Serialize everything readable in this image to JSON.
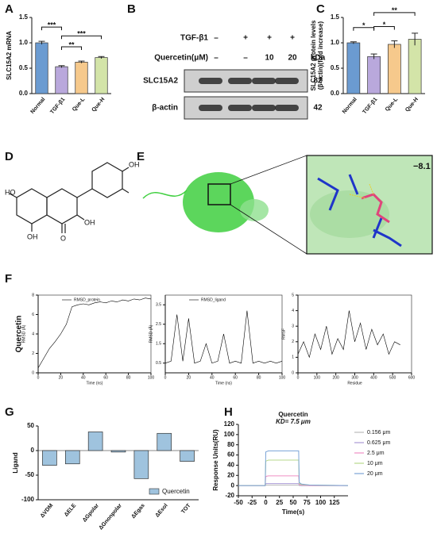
{
  "chart_data": [
    {
      "type": "bar",
      "panel": "A",
      "ylabel": [
        "SLC15A2 mRNA"
      ],
      "categories": [
        "Normal",
        "TGF-β1",
        "Que-L",
        "Que-H"
      ],
      "values": [
        1.0,
        0.53,
        0.62,
        0.71
      ],
      "errors": [
        0.03,
        0.02,
        0.02,
        0.02
      ],
      "colors": [
        "#6b9bd1",
        "#b9a8dc",
        "#f6c98c",
        "#d3e4a8"
      ],
      "ylim": [
        0,
        1.5
      ],
      "yticks": [
        {
          "value": 0,
          "label": "0.0"
        },
        0.5,
        {
          "value": 1,
          "label": "1.0"
        },
        1.5
      ],
      "annotations": [
        {
          "text": "***",
          "from": 0,
          "to": 1
        },
        {
          "text": "**",
          "from": 1,
          "to": 2
        },
        {
          "text": "***",
          "from": 1,
          "to": 3
        }
      ]
    },
    {
      "type": "bar",
      "panel": "C",
      "ylabel": [
        "SLC15A2 protein levels",
        "(β-actin)(fold increase)"
      ],
      "categories": [
        "Normal",
        "TGF-β1",
        "Que-L",
        "Que-H"
      ],
      "values": [
        1.0,
        0.73,
        0.97,
        1.07
      ],
      "errors": [
        0.02,
        0.05,
        0.07,
        0.12
      ],
      "colors": [
        "#6b9bd1",
        "#b9a8dc",
        "#f6c98c",
        "#d3e4a8"
      ],
      "ylim": [
        0,
        1.5
      ],
      "yticks": [
        {
          "value": 0,
          "label": "0.0"
        },
        0.5,
        {
          "value": 1,
          "label": "1.0"
        },
        1.5
      ],
      "annotations": [
        {
          "text": "*",
          "from": 0,
          "to": 1
        },
        {
          "text": "*",
          "from": 1,
          "to": 2
        },
        {
          "text": "**",
          "from": 1,
          "to": 3
        }
      ]
    },
    {
      "type": "line",
      "xlabel": "Time (ns)",
      "ylabel": [
        "RMSD (Å)"
      ],
      "legend": "upper left",
      "x": [
        0,
        5,
        10,
        15,
        20,
        25,
        30,
        35,
        40,
        45,
        50,
        55,
        60,
        65,
        70,
        75,
        80,
        85,
        90,
        95,
        100
      ],
      "series": [
        {
          "name": "RMSD_protein",
          "color": "#000000",
          "values": [
            0.5,
            1.5,
            2.5,
            3.2,
            4.0,
            5.0,
            6.8,
            7.0,
            7.1,
            7.0,
            7.2,
            7.3,
            7.2,
            7.4,
            7.3,
            7.5,
            7.4,
            7.6,
            7.5,
            7.7,
            7.6
          ]
        }
      ],
      "xlim": [
        0,
        100
      ],
      "xticks": [
        0,
        20,
        40,
        60,
        80,
        100
      ],
      "ylim": [
        0,
        8
      ],
      "yticks": [
        0,
        2,
        4,
        6,
        8
      ]
    },
    {
      "type": "line",
      "xlabel": "Time (ns)",
      "ylabel": [
        "RMSD (Å)"
      ],
      "legend": "upper left",
      "x": [
        0,
        5,
        10,
        15,
        20,
        25,
        30,
        35,
        40,
        45,
        50,
        55,
        60,
        65,
        70,
        75,
        80,
        85,
        90,
        95,
        100
      ],
      "series": [
        {
          "name": "RMSD_ligand",
          "color": "#000000",
          "values": [
            0.5,
            0.6,
            3.0,
            0.6,
            2.8,
            0.5,
            0.6,
            1.5,
            0.5,
            0.6,
            2.0,
            0.5,
            0.6,
            0.5,
            3.2,
            0.5,
            0.6,
            0.5,
            0.6,
            0.5,
            0.6
          ]
        }
      ],
      "xlim": [
        0,
        100
      ],
      "xticks": [
        0,
        20,
        40,
        60,
        80,
        100
      ],
      "ylim": [
        0,
        4
      ],
      "yticks": [
        0.5,
        1.5,
        2.5,
        3.5
      ]
    },
    {
      "type": "line",
      "xlabel": "Residue",
      "ylabel": [
        "RMSF"
      ],
      "x": [
        0,
        30,
        60,
        90,
        120,
        150,
        180,
        210,
        240,
        270,
        300,
        330,
        360,
        390,
        420,
        450,
        480,
        510,
        540
      ],
      "series": [
        {
          "color": "#000000",
          "values": [
            1.2,
            2.0,
            1.0,
            2.5,
            1.5,
            3.0,
            1.2,
            2.2,
            1.5,
            4.0,
            2.0,
            3.2,
            1.5,
            2.8,
            1.8,
            2.5,
            1.2,
            2.0,
            1.8
          ]
        }
      ],
      "xlim": [
        0,
        600
      ],
      "xticks": [
        0,
        100,
        200,
        300,
        400,
        500,
        600
      ],
      "ylim": [
        0,
        5
      ],
      "yticks": [
        0,
        1,
        2,
        3,
        4,
        5
      ]
    },
    {
      "type": "bar",
      "panel": "G",
      "ylabel": [
        "Ligand"
      ],
      "legend": "lower right",
      "categories": [
        "ΔVDM",
        "ΔELE",
        "ΔGpolar",
        "ΔGnonpolar",
        "ΔEgas",
        "ΔEsol",
        "TOT"
      ],
      "series": [
        {
          "name": "Quercetin",
          "color": "#9fc3de",
          "values": [
            -30,
            -27,
            38,
            -3,
            -57,
            35,
            -22
          ]
        }
      ],
      "ylim": [
        -100,
        50
      ],
      "yticks": [
        -100,
        -50,
        0,
        50
      ]
    },
    {
      "type": "line",
      "panel": "H",
      "title": "Quercetin",
      "subtitle": "KD= 7.5 μm",
      "xlabel": "Time(s)",
      "ylabel": [
        "Response Units(RU)"
      ],
      "legend": "outside right",
      "x": [
        -50,
        -1,
        0,
        5,
        60,
        61,
        65,
        80,
        150
      ],
      "series": [
        {
          "name": "0.156 μm",
          "color": "#bbbbbb",
          "values": [
            0,
            0,
            1,
            1,
            1,
            0,
            0,
            0,
            0
          ]
        },
        {
          "name": "0.625 μm",
          "color": "#a99ad6",
          "values": [
            0,
            0,
            4,
            4,
            4,
            1,
            0,
            0,
            0
          ]
        },
        {
          "name": "2.5 μm",
          "color": "#f08fc4",
          "values": [
            0,
            0,
            18,
            19,
            19,
            2,
            1,
            0,
            0
          ]
        },
        {
          "name": "10 μm",
          "color": "#b7d98c",
          "values": [
            0,
            0,
            48,
            50,
            50,
            4,
            2,
            1,
            0
          ]
        },
        {
          "name": "20 μm",
          "color": "#7aa3d6",
          "values": [
            0,
            0,
            66,
            68,
            68,
            6,
            3,
            1,
            0
          ]
        }
      ],
      "xlim": [
        -50,
        150
      ],
      "xticks": [
        -50,
        -25,
        0,
        25,
        50,
        75,
        100,
        125
      ],
      "ylim": [
        -20,
        120
      ],
      "yticks": [
        -20,
        0,
        20,
        40,
        60,
        80,
        100,
        120
      ]
    }
  ],
  "blot": {
    "label": "B",
    "rows": [
      {
        "name": "TGF-β1",
        "marks": [
          "–",
          "+",
          "+",
          "+"
        ]
      },
      {
        "name": "Quercetin(μM)",
        "marks": [
          "–",
          "–",
          "10",
          "20"
        ]
      }
    ],
    "unit": "kDa",
    "bands": [
      {
        "name": "SLC15A2",
        "kda": "82"
      },
      {
        "name": "β-actin",
        "kda": "42"
      }
    ]
  },
  "structure": {
    "label": "D",
    "atoms": [
      "HO",
      "OH",
      "OH",
      "OH",
      "O"
    ]
  },
  "docking": {
    "label": "E",
    "score": "−8.1"
  },
  "panel_F": {
    "label": "F",
    "row_label": "Quercetin"
  }
}
